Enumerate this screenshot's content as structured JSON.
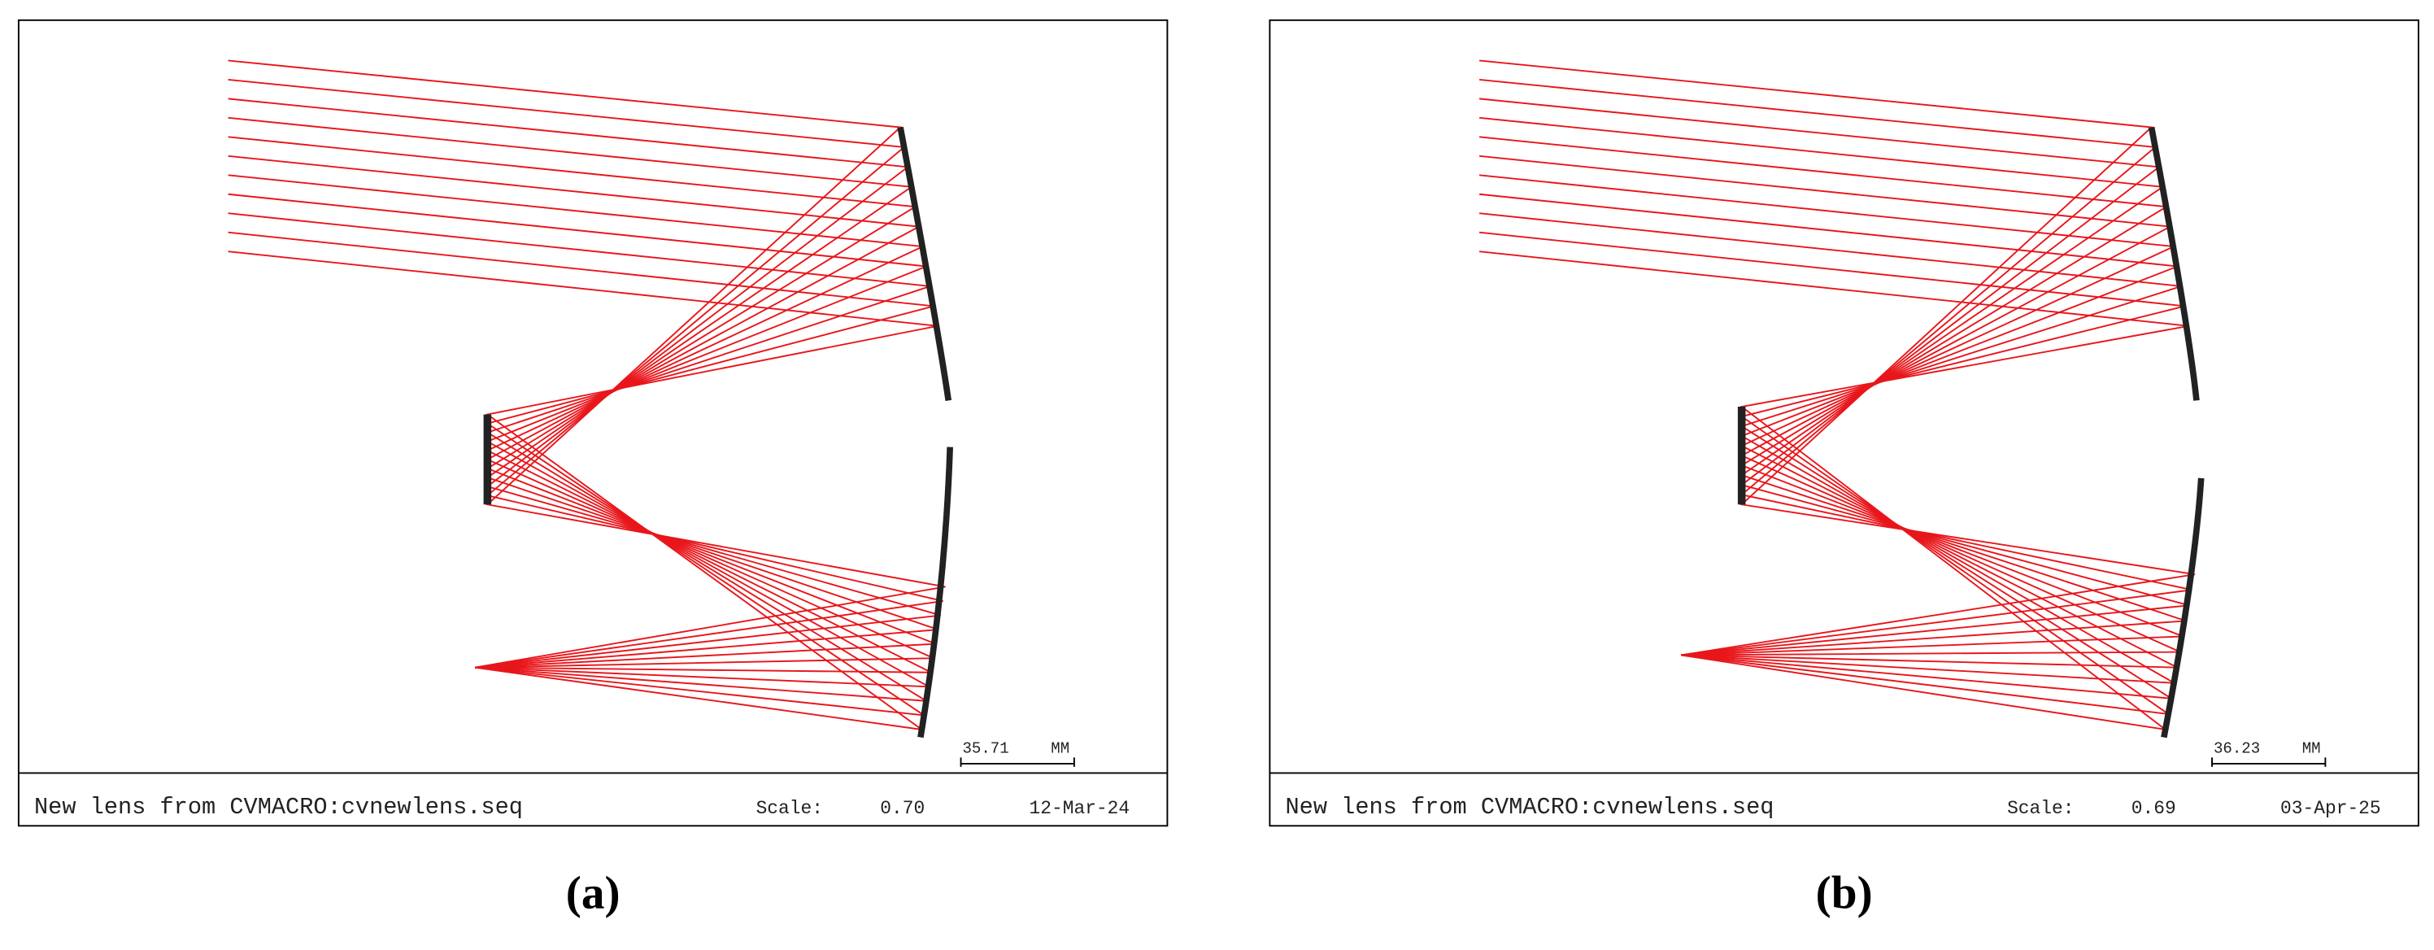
{
  "panels": [
    {
      "title": "New lens from CVMACRO:cvnewlens.seq",
      "scale_label": "Scale:",
      "scale": "0.70",
      "date": "12-Mar-24",
      "scalebar_value": "35.71",
      "scalebar_unit": "MM",
      "caption": "(a)"
    },
    {
      "title": "New lens from CVMACRO:cvnewlens.seq",
      "scale_label": "Scale:",
      "scale": "0.69",
      "date": "03-Apr-25",
      "scalebar_value": "36.23",
      "scalebar_unit": "MM",
      "caption": "(b)"
    }
  ]
}
